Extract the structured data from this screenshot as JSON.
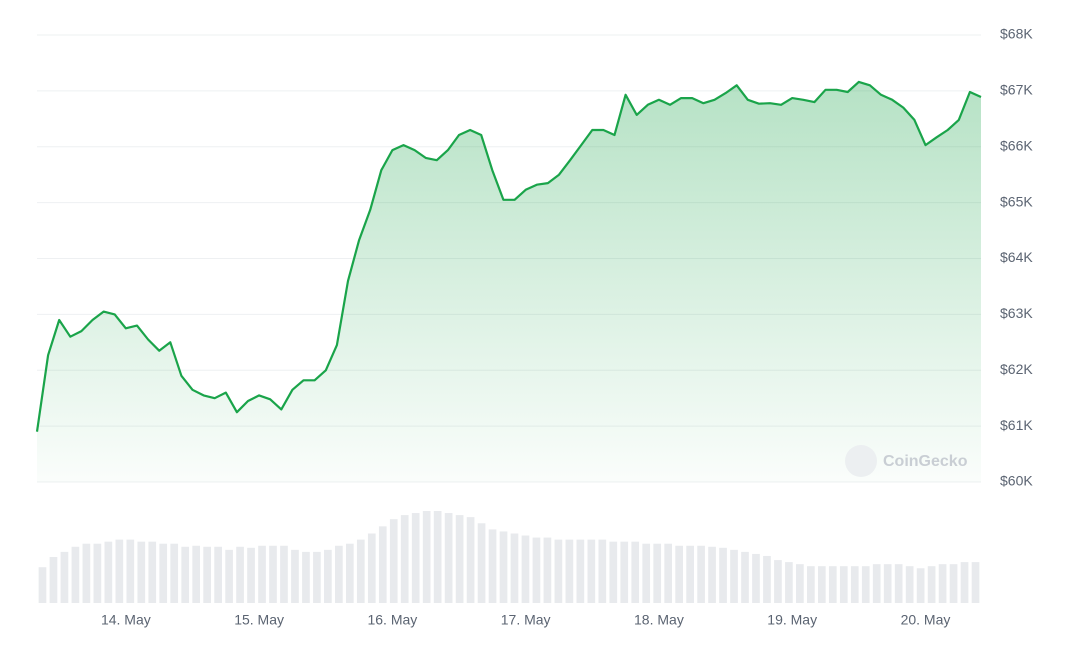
{
  "chart_data": [
    {
      "type": "line",
      "color": "#1aa44a",
      "grid": true,
      "watermark": "CoinGecko",
      "categories": [
        null,
        null,
        null,
        null,
        null,
        null,
        null,
        null,
        "14. May",
        null,
        null,
        null,
        null,
        null,
        null,
        null,
        null,
        null,
        null,
        null,
        "15. May",
        null,
        null,
        null,
        null,
        null,
        null,
        null,
        null,
        null,
        null,
        null,
        "16. May",
        null,
        null,
        null,
        null,
        null,
        null,
        null,
        null,
        null,
        null,
        null,
        "17. May",
        null,
        null,
        null,
        null,
        null,
        null,
        null,
        null,
        null,
        null,
        null,
        "18. May",
        null,
        null,
        null,
        null,
        null,
        null,
        null,
        null,
        null,
        null,
        null,
        "19. May",
        null,
        null,
        null,
        null,
        null,
        null,
        null,
        null,
        null,
        null,
        null,
        "20. May",
        null,
        null,
        null,
        null,
        null
      ],
      "values": [
        60900,
        62270,
        62900,
        62600,
        62700,
        62900,
        63050,
        63000,
        62750,
        62800,
        62550,
        62350,
        62500,
        61900,
        61650,
        61550,
        61500,
        61600,
        61250,
        61450,
        61550,
        61480,
        61300,
        61650,
        61820,
        61820,
        62000,
        62450,
        63600,
        64330,
        64870,
        65580,
        65940,
        66030,
        65940,
        65800,
        65760,
        65940,
        66210,
        66300,
        66210,
        65580,
        65050,
        65050,
        65230,
        65320,
        65350,
        65500,
        65760,
        66030,
        66300,
        66300,
        66210,
        66930,
        66570,
        66750,
        66840,
        66750,
        66870,
        66870,
        66780,
        66840,
        66960,
        67100,
        66840,
        66770,
        66780,
        66750,
        66870,
        66840,
        66800,
        67020,
        67020,
        66980,
        67160,
        67100,
        66930,
        66840,
        66700,
        66480,
        66030,
        66170,
        66300,
        66480,
        66980,
        66890
      ],
      "ylim": [
        60000,
        68000
      ],
      "yticks": [
        {
          "value": 60000,
          "label": "$60K"
        },
        {
          "value": 61000,
          "label": "$61K"
        },
        {
          "value": 62000,
          "label": "$62K"
        },
        {
          "value": 63000,
          "label": "$63K"
        },
        {
          "value": 64000,
          "label": "$64K"
        },
        {
          "value": 65000,
          "label": "$65K"
        },
        {
          "value": 66000,
          "label": "$66K"
        },
        {
          "value": 67000,
          "label": "$67K"
        },
        {
          "value": 68000,
          "label": "$68K"
        }
      ]
    },
    {
      "type": "bar",
      "color": "#e8eaed",
      "values": [
        35,
        45,
        50,
        55,
        58,
        58,
        60,
        62,
        62,
        60,
        60,
        58,
        58,
        55,
        56,
        55,
        55,
        52,
        55,
        54,
        56,
        56,
        56,
        52,
        50,
        50,
        52,
        56,
        58,
        62,
        68,
        75,
        82,
        86,
        88,
        90,
        90,
        88,
        86,
        84,
        78,
        72,
        70,
        68,
        66,
        64,
        64,
        62,
        62,
        62,
        62,
        62,
        60,
        60,
        60,
        58,
        58,
        58,
        56,
        56,
        56,
        55,
        54,
        52,
        50,
        48,
        46,
        42,
        40,
        38,
        36,
        36,
        36,
        36,
        36,
        36,
        38,
        38,
        38,
        36,
        34,
        36,
        38,
        38,
        40,
        40
      ]
    }
  ]
}
